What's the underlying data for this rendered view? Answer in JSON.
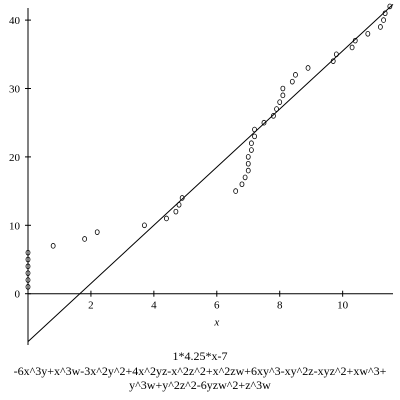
{
  "chart_data": {
    "type": "scatter",
    "title": "1*4.25*x-7",
    "caption_lines": [
      "-6x^3y+x^3w-3x^2y^2+4x^2yz-x^2z^2+x^2zw+6xy^3-xy^2z-xyz^2+xw^3+",
      "y^3w+y^2z^2-6yzw^2+z^3w"
    ],
    "xlabel": "x",
    "ylabel": "",
    "xlim": [
      0,
      11.6
    ],
    "ylim": [
      -7.5,
      42.5
    ],
    "x_ticks": [
      2,
      4,
      6,
      8,
      10
    ],
    "y_ticks": [
      0,
      10,
      20,
      30,
      40
    ],
    "grid": false,
    "line": {
      "slope": 4.25,
      "intercept": -7,
      "x_range": [
        0,
        11.6
      ]
    },
    "points": [
      {
        "x": 0.0,
        "y": 1
      },
      {
        "x": 0.0,
        "y": 2
      },
      {
        "x": 0.0,
        "y": 3
      },
      {
        "x": 0.0,
        "y": 4
      },
      {
        "x": 0.0,
        "y": 5
      },
      {
        "x": 0.0,
        "y": 6
      },
      {
        "x": 0.8,
        "y": 7
      },
      {
        "x": 1.8,
        "y": 8
      },
      {
        "x": 2.2,
        "y": 9
      },
      {
        "x": 3.7,
        "y": 10
      },
      {
        "x": 4.4,
        "y": 11
      },
      {
        "x": 4.7,
        "y": 12
      },
      {
        "x": 4.8,
        "y": 13
      },
      {
        "x": 4.9,
        "y": 14
      },
      {
        "x": 6.6,
        "y": 15
      },
      {
        "x": 6.8,
        "y": 16
      },
      {
        "x": 6.9,
        "y": 17
      },
      {
        "x": 7.0,
        "y": 18
      },
      {
        "x": 7.0,
        "y": 19
      },
      {
        "x": 7.0,
        "y": 20
      },
      {
        "x": 7.1,
        "y": 21
      },
      {
        "x": 7.1,
        "y": 22
      },
      {
        "x": 7.2,
        "y": 23
      },
      {
        "x": 7.2,
        "y": 24
      },
      {
        "x": 7.5,
        "y": 25
      },
      {
        "x": 7.8,
        "y": 26
      },
      {
        "x": 7.9,
        "y": 27
      },
      {
        "x": 8.0,
        "y": 28
      },
      {
        "x": 8.1,
        "y": 29
      },
      {
        "x": 8.1,
        "y": 30
      },
      {
        "x": 8.4,
        "y": 31
      },
      {
        "x": 8.5,
        "y": 32
      },
      {
        "x": 8.9,
        "y": 33
      },
      {
        "x": 9.7,
        "y": 34
      },
      {
        "x": 9.8,
        "y": 35
      },
      {
        "x": 10.3,
        "y": 36
      },
      {
        "x": 10.4,
        "y": 37
      },
      {
        "x": 10.8,
        "y": 38
      },
      {
        "x": 11.2,
        "y": 39
      },
      {
        "x": 11.3,
        "y": 40
      },
      {
        "x": 11.35,
        "y": 41
      },
      {
        "x": 11.5,
        "y": 42
      }
    ]
  }
}
